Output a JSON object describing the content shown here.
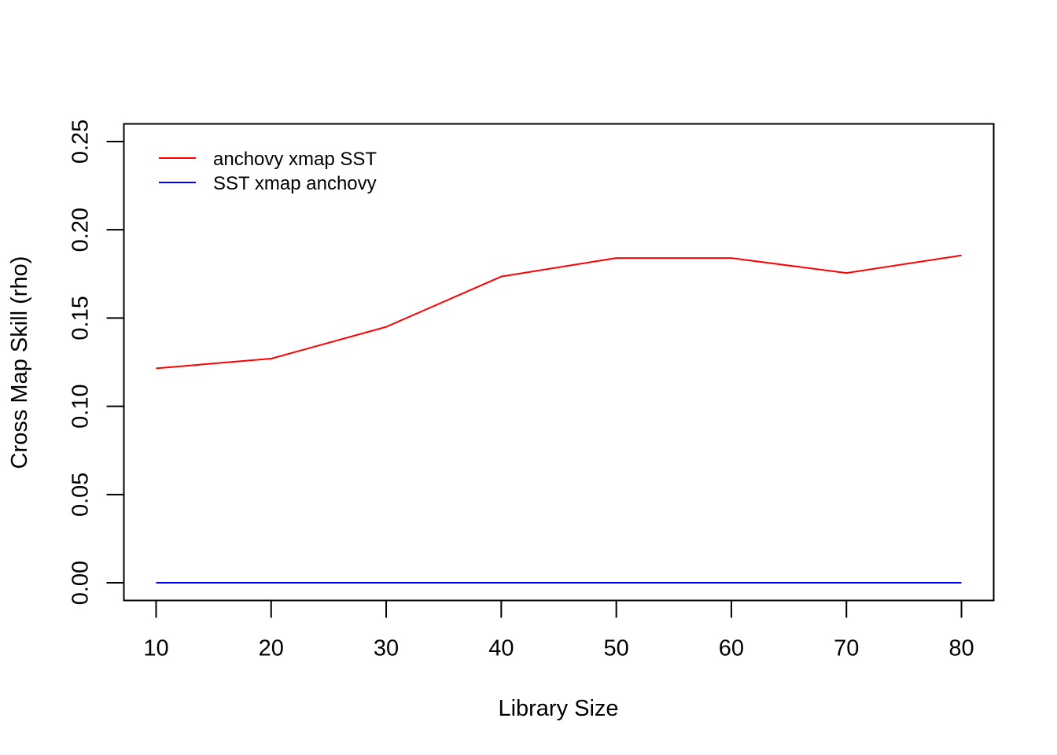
{
  "chart_data": {
    "type": "line",
    "title": "",
    "xlabel": "Library Size",
    "ylabel": "Cross Map Skill (rho)",
    "x": [
      10,
      20,
      30,
      40,
      50,
      60,
      70,
      80
    ],
    "xlim": [
      7.2,
      82.8
    ],
    "ylim": [
      -0.01,
      0.26
    ],
    "xticks": [
      10,
      20,
      30,
      40,
      50,
      60,
      70,
      80
    ],
    "xtick_labels": [
      "10",
      "20",
      "30",
      "40",
      "50",
      "60",
      "70",
      "80"
    ],
    "yticks": [
      0,
      0.05,
      0.1,
      0.15,
      0.2,
      0.25
    ],
    "ytick_labels": [
      "0.00",
      "0.05",
      "0.10",
      "0.15",
      "0.20",
      "0.25"
    ],
    "grid": false,
    "legend_position": "top-left",
    "series": [
      {
        "name": "anchovy xmap SST",
        "color": "#ff0000",
        "values": [
          0.1215,
          0.127,
          0.145,
          0.1735,
          0.184,
          0.184,
          0.1755,
          0.1855
        ]
      },
      {
        "name": "SST xmap anchovy",
        "color": "#0000ff",
        "values": [
          0,
          0,
          0,
          0,
          0,
          0,
          0,
          0
        ]
      }
    ]
  }
}
